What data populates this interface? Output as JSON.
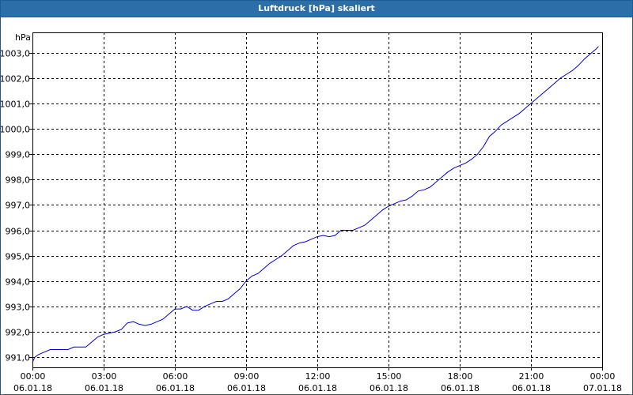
{
  "title": "Luftdruck [hPa] skaliert",
  "colors": {
    "line": "#0000cc",
    "grid": "#000000",
    "titleBar": "#2b6ea8"
  },
  "chart_data": {
    "type": "line",
    "title": "Luftdruck [hPa] skaliert",
    "ylabel": "hPa",
    "xlabel": "",
    "ylim": [
      990.6,
      1003.8
    ],
    "xlim": [
      0,
      24
    ],
    "grid": true,
    "yTicks": [
      {
        "value": 991.0,
        "label": "991,0"
      },
      {
        "value": 992.0,
        "label": "992,0"
      },
      {
        "value": 993.0,
        "label": "993,0"
      },
      {
        "value": 994.0,
        "label": "994,0"
      },
      {
        "value": 995.0,
        "label": "995,0"
      },
      {
        "value": 996.0,
        "label": "996,0"
      },
      {
        "value": 997.0,
        "label": "997,0"
      },
      {
        "value": 998.0,
        "label": "998,0"
      },
      {
        "value": 999.0,
        "label": "999,0"
      },
      {
        "value": 1000.0,
        "label": "1000,0"
      },
      {
        "value": 1001.0,
        "label": "1001,0"
      },
      {
        "value": 1002.0,
        "label": "1002,0"
      },
      {
        "value": 1003.0,
        "label": "1003,0"
      }
    ],
    "xTicks": [
      {
        "value": 0,
        "time": "00:00",
        "date": "06.01.18"
      },
      {
        "value": 3,
        "time": "03:00",
        "date": "06.01.18"
      },
      {
        "value": 6,
        "time": "06:00",
        "date": "06.01.18"
      },
      {
        "value": 9,
        "time": "09:00",
        "date": "06.01.18"
      },
      {
        "value": 12,
        "time": "12:00",
        "date": "06.01.18"
      },
      {
        "value": 15,
        "time": "15:00",
        "date": "06.01.18"
      },
      {
        "value": 18,
        "time": "18:00",
        "date": "06.01.18"
      },
      {
        "value": 21,
        "time": "21:00",
        "date": "06.01.18"
      },
      {
        "value": 24,
        "time": "00:00",
        "date": "07.01.18"
      }
    ],
    "series": [
      {
        "x": [
          0,
          0.1,
          0.25,
          0.5,
          0.75,
          1.0,
          1.5,
          1.75,
          2.0,
          2.25,
          2.5,
          2.75,
          3.0,
          3.5,
          3.75,
          4.0,
          4.25,
          4.5,
          4.75,
          5.0,
          5.25,
          5.5,
          5.75,
          6.0,
          6.25,
          6.5,
          6.75,
          7.0,
          7.25,
          7.5,
          7.75,
          8.0,
          8.25,
          8.5,
          8.75,
          9.0,
          9.25,
          9.5,
          9.75,
          10.0,
          10.25,
          10.5,
          10.75,
          11.0,
          11.25,
          11.5,
          11.75,
          12.0,
          12.25,
          12.5,
          12.75,
          13.0,
          13.25,
          13.5,
          13.75,
          14.0,
          14.25,
          14.5,
          14.75,
          15.0,
          15.25,
          15.5,
          15.75,
          16.0,
          16.25,
          16.5,
          16.75,
          17.0,
          17.25,
          17.5,
          17.75,
          18.0,
          18.25,
          18.5,
          18.75,
          19.0,
          19.25,
          19.5,
          19.75,
          20.0,
          20.25,
          20.5,
          20.75,
          21.0,
          21.25,
          21.5,
          21.75,
          22.0,
          22.25,
          22.5,
          22.75,
          23.0,
          23.25,
          23.5,
          23.75,
          23.85
        ],
        "y": [
          990.8,
          991.0,
          991.1,
          991.2,
          991.3,
          991.3,
          991.3,
          991.4,
          991.4,
          991.4,
          991.6,
          991.8,
          991.9,
          992.0,
          992.1,
          992.35,
          992.4,
          992.3,
          992.25,
          992.3,
          992.4,
          992.5,
          992.7,
          992.9,
          992.9,
          993.0,
          992.85,
          992.85,
          993.0,
          993.1,
          993.2,
          993.2,
          993.3,
          993.5,
          993.7,
          994.0,
          994.2,
          994.3,
          994.5,
          994.7,
          994.85,
          995.0,
          995.2,
          995.4,
          995.5,
          995.55,
          995.65,
          995.75,
          995.8,
          995.75,
          995.8,
          996.0,
          996.0,
          996.0,
          996.1,
          996.2,
          996.4,
          996.6,
          996.8,
          996.95,
          997.05,
          997.15,
          997.2,
          997.35,
          997.55,
          997.6,
          997.7,
          997.9,
          998.1,
          998.3,
          998.45,
          998.55,
          998.65,
          998.8,
          999.0,
          999.3,
          999.7,
          999.9,
          1000.15,
          1000.3,
          1000.45,
          1000.6,
          1000.8,
          1001.0,
          1001.2,
          1001.4,
          1001.6,
          1001.8,
          1002.0,
          1002.15,
          1002.3,
          1002.5,
          1002.75,
          1002.95,
          1003.15,
          1003.25
        ]
      }
    ]
  }
}
